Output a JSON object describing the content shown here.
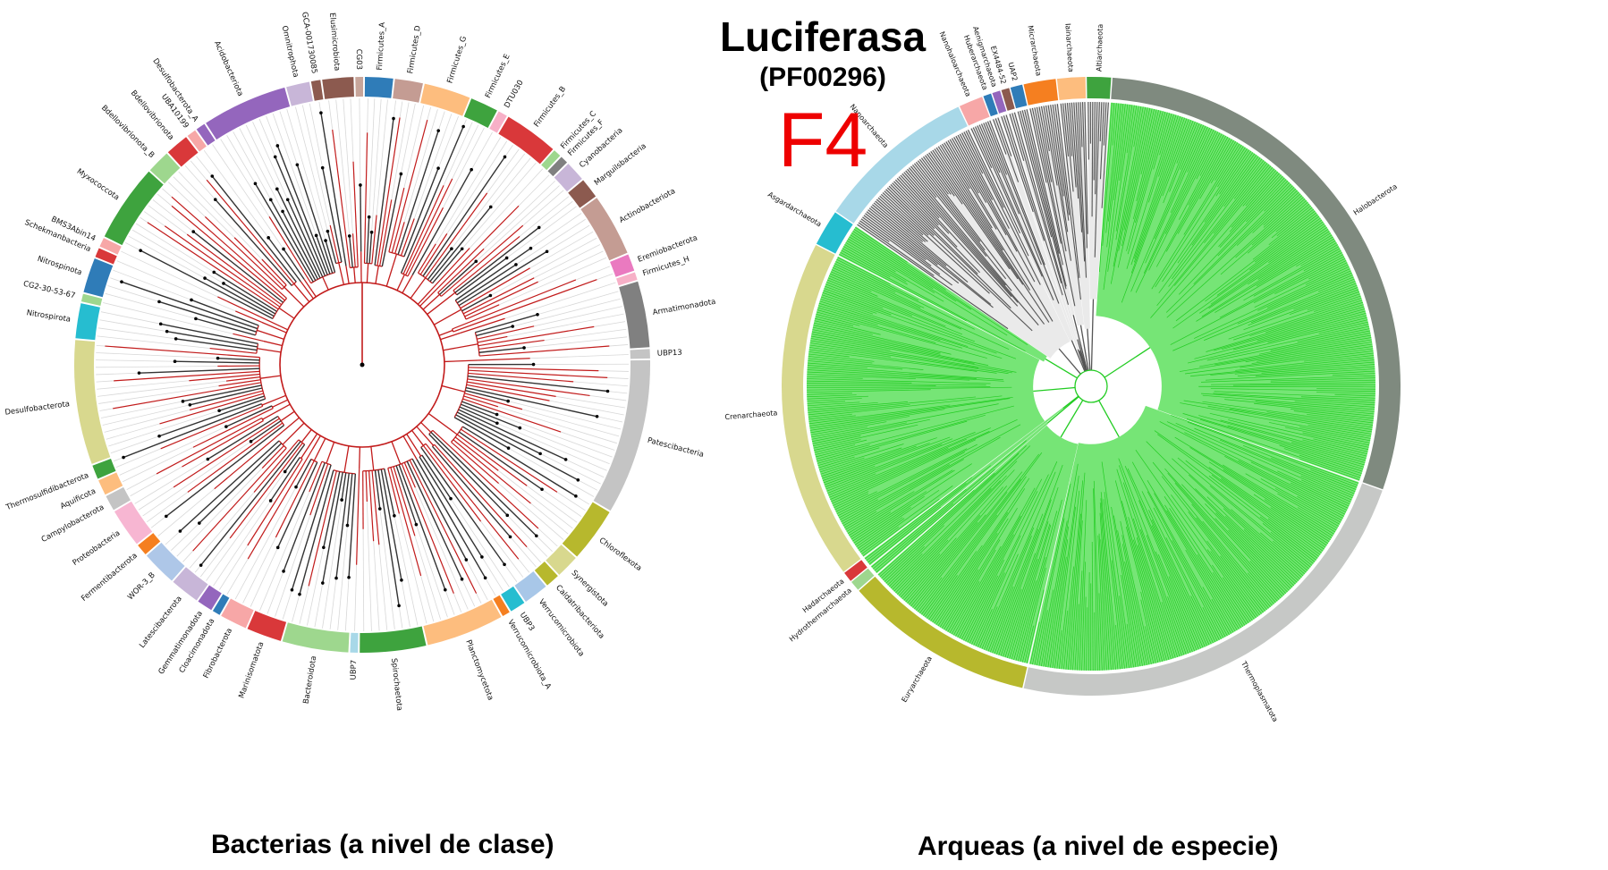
{
  "header": {
    "title": "Luciferasa",
    "subtitle": "(PF00296)",
    "figure_label": "F4"
  },
  "captions": {
    "left": "Bacterias (a nivel de clase)",
    "right": "Arqueas (a nivel de especie)"
  },
  "colors": {
    "bacteria_branch": "#c21b1b",
    "bacteria_branch_dark": "#333333",
    "archaea_branch": "#22cc22",
    "archaea_fill": "#5ee05e",
    "archaea_branch_dark": "#555555",
    "figure_label": "#ee0000"
  },
  "bacteria": {
    "phyla": [
      {
        "name": "Elusimicrobiota",
        "color": "#8c5a4f",
        "span": 4.0
      },
      {
        "name": "CG03",
        "color": "#c7a59a",
        "span": 1.0
      },
      {
        "name": "Firmicutes_A",
        "color": "#2f7cb8",
        "span": 3.6
      },
      {
        "name": "Firmicutes_D",
        "color": "#c49c93",
        "span": 3.6
      },
      {
        "name": "Firmicutes_G",
        "color": "#fdbd7e",
        "span": 6.0
      },
      {
        "name": "Firmicutes_E",
        "color": "#3ea33e",
        "span": 3.6
      },
      {
        "name": "DTU030",
        "color": "#f7b0c7",
        "span": 1.2
      },
      {
        "name": "Firmicutes_B",
        "color": "#d9383a",
        "span": 7.0
      },
      {
        "name": "Firmicutes_C",
        "color": "#9ed78e",
        "span": 1.0
      },
      {
        "name": "Firmicutes_F",
        "color": "#808080",
        "span": 1.0
      },
      {
        "name": "Cyanobacteria",
        "color": "#c8b6d8",
        "span": 2.6
      },
      {
        "name": "Marguilsbacteria",
        "color": "#8c5a4f",
        "span": 2.6
      },
      {
        "name": "Actinobacteriota",
        "color": "#c49c93",
        "span": 8.0
      },
      {
        "name": "Eremiobacterota",
        "color": "#ea7ac0",
        "span": 2.2
      },
      {
        "name": "Firmicutes_H",
        "color": "#f7b0c7",
        "span": 1.0
      },
      {
        "name": "Armatimonadota",
        "color": "#808080",
        "span": 8.5
      },
      {
        "name": "UBP13",
        "color": "#c4c4c4",
        "span": 1.2
      },
      {
        "name": "Patescibacteria",
        "color": "#c4c4c4",
        "span": 20.0
      },
      {
        "name": "Chloroflexota",
        "color": "#b7b82d",
        "span": 7.0
      },
      {
        "name": "Synergistota",
        "color": "#d8d88e",
        "span": 3.0
      },
      {
        "name": "Caldatribacteriota",
        "color": "#b7b82d",
        "span": 1.8
      },
      {
        "name": "Verrucomicrobiota",
        "color": "#a8c7e8",
        "span": 3.2
      },
      {
        "name": "UBP3",
        "color": "#26bdd0",
        "span": 2.0
      },
      {
        "name": "Verrucomicrobiota_A",
        "color": "#f57f20",
        "span": 1.0
      },
      {
        "name": "Planctomycetota",
        "color": "#fdbd7e",
        "span": 10.0
      },
      {
        "name": "Spirochaetota",
        "color": "#3ea33e",
        "span": 8.5
      },
      {
        "name": "UBP7",
        "color": "#a8d8e8",
        "span": 1.0
      },
      {
        "name": "Bacteroidota",
        "color": "#9ed78e",
        "span": 8.5
      },
      {
        "name": "Marinisomatota",
        "color": "#d9383a",
        "span": 4.5
      },
      {
        "name": "Fibrobacterota",
        "color": "#f7a7a7",
        "span": 3.5
      },
      {
        "name": "Cloacimonadota",
        "color": "#2f7cb8",
        "span": 1.0
      },
      {
        "name": "Gemmatimonadota",
        "color": "#9466bd",
        "span": 2.0
      },
      {
        "name": "Latescibacterota",
        "color": "#c8b6d8",
        "span": 3.8
      },
      {
        "name": "WOR-3_B",
        "color": "#aec7e8",
        "span": 4.5
      },
      {
        "name": "Fermentibacterota",
        "color": "#f57f20",
        "span": 1.5
      },
      {
        "name": "Proteobacteria",
        "color": "#f7b6d2",
        "span": 5.0
      },
      {
        "name": "Campylobacterota",
        "color": "#c4c4c4",
        "span": 2.0
      },
      {
        "name": "Aquificota",
        "color": "#fdbd7e",
        "span": 2.0
      },
      {
        "name": "Thermosulfidibacterota",
        "color": "#3ea33e",
        "span": 1.8
      },
      {
        "name": "Desulfobacterota",
        "color": "#d8d88e",
        "span": 16.0
      },
      {
        "name": "Nitrospirota",
        "color": "#26bdd0",
        "span": 4.5
      },
      {
        "name": "CG2-30-53-67",
        "color": "#9ed78e",
        "span": 1.0
      },
      {
        "name": "Nitrospinota",
        "color": "#2f7cb8",
        "span": 4.5
      },
      {
        "name": "Schekmanbacteria",
        "color": "#d9383a",
        "span": 1.2
      },
      {
        "name": "BMS3Abin14",
        "color": "#f7a7a7",
        "span": 1.2
      },
      {
        "name": "Myxococcota",
        "color": "#3ea33e",
        "span": 10.0
      },
      {
        "name": "Bdellovibrionota_B",
        "color": "#9ed78e",
        "span": 3.0
      },
      {
        "name": "Bdellovibrionota",
        "color": "#d9383a",
        "span": 3.0
      },
      {
        "name": "UBA10199",
        "color": "#f7a7a7",
        "span": 1.2
      },
      {
        "name": "Desulfobacterota_A",
        "color": "#9466bd",
        "span": 1.2
      },
      {
        "name": "Acidobacteriota",
        "color": "#9466bd",
        "span": 11.0
      },
      {
        "name": "Omnitrophota",
        "color": "#c8b6d8",
        "span": 3.0
      },
      {
        "name": "GCA-001730085",
        "color": "#8c5a4f",
        "span": 1.2
      }
    ]
  },
  "archaea": {
    "phyla": [
      {
        "name": "Altiarchaeota",
        "color": "#3ea33e",
        "span": 1.2
      },
      {
        "name": "Halobacterota",
        "color": "#7f8a7f",
        "span": 28.0
      },
      {
        "name": "Thermoplasmatota",
        "color": "#c6c8c6",
        "span": 22.0
      },
      {
        "name": "Euryarchaeota",
        "color": "#b7b82d",
        "span": 9.5
      },
      {
        "name": "Hydrothermarchaeota",
        "color": "#9ed78e",
        "span": 0.5
      },
      {
        "name": "Hadarchaeota",
        "color": "#d9383a",
        "span": 0.5
      },
      {
        "name": "Crenarchaeota",
        "color": "#d8d88e",
        "span": 17.0
      },
      {
        "name": "Asgardarchaeota",
        "color": "#26bdd0",
        "span": 1.8
      },
      {
        "name": "Nanoarchaeota",
        "color": "#a8d8e8",
        "span": 8.0
      },
      {
        "name": "Nanohaloarchaeota",
        "color": "#f7a7a7",
        "span": 1.2
      },
      {
        "name": "Huberarchaeota",
        "color": "#2f7cb8",
        "span": 0.4
      },
      {
        "name": "Aenigmarchaeota",
        "color": "#9466bd",
        "span": 0.4
      },
      {
        "name": "EX4484-52",
        "color": "#8c5a4f",
        "span": 0.4
      },
      {
        "name": "UAP2",
        "color": "#2f7cb8",
        "span": 0.6
      },
      {
        "name": "Micrarchaeota",
        "color": "#f57f20",
        "span": 1.6
      },
      {
        "name": "Iainarchaeota",
        "color": "#fdbd7e",
        "span": 1.4
      }
    ]
  }
}
